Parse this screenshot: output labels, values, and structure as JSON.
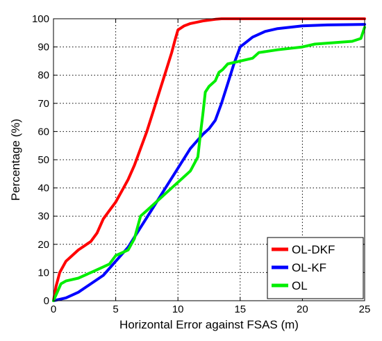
{
  "chart_data": {
    "type": "line",
    "xlabel": "Horizontal Error against FSAS (m)",
    "ylabel": "Percentage (%)",
    "xlim": [
      0,
      25
    ],
    "ylim": [
      0,
      100
    ],
    "xticks": [
      0,
      5,
      10,
      15,
      20,
      25
    ],
    "yticks": [
      0,
      10,
      20,
      30,
      40,
      50,
      60,
      70,
      80,
      90,
      100
    ],
    "grid": true,
    "legend_position": "bottom-right",
    "series": [
      {
        "name": "OL-DKF",
        "color": "#ff0000",
        "x": [
          0,
          0.2,
          0.5,
          1.0,
          1.5,
          2.0,
          2.5,
          3.0,
          3.5,
          4.0,
          4.5,
          5.0,
          5.5,
          6.0,
          6.5,
          7.0,
          7.5,
          8.0,
          8.5,
          9.0,
          9.5,
          9.8,
          10.0,
          10.5,
          11.0,
          12.0,
          13.0,
          13.5,
          15.0,
          20.0,
          25.0
        ],
        "y": [
          0,
          5,
          10,
          14,
          16,
          18,
          19.5,
          21,
          24,
          29,
          32,
          35,
          39,
          43,
          48,
          54,
          60,
          67,
          74,
          81,
          88,
          93,
          96,
          97.5,
          98.3,
          99.2,
          99.8,
          100,
          100,
          100,
          100
        ]
      },
      {
        "name": "OL-KF",
        "color": "#0000ff",
        "x": [
          0,
          0.5,
          1.0,
          2.0,
          3.0,
          4.0,
          5.0,
          6.0,
          7.0,
          8.0,
          9.0,
          10.0,
          11.0,
          11.5,
          12.0,
          12.5,
          13.0,
          13.5,
          14.0,
          14.5,
          15.0,
          16.0,
          17.0,
          18.0,
          19.0,
          20.0,
          22.0,
          25.0
        ],
        "y": [
          0,
          0.5,
          1,
          3,
          6,
          9,
          14,
          19,
          26,
          33,
          40,
          47,
          54,
          56.5,
          59,
          61,
          64,
          70,
          77,
          84,
          90,
          93.5,
          95.5,
          96.5,
          97,
          97.5,
          97.8,
          98
        ]
      },
      {
        "name": "OL",
        "color": "#00ee00",
        "x": [
          0,
          0.3,
          0.6,
          1.0,
          2.0,
          3.0,
          4.0,
          4.5,
          5.0,
          5.5,
          6.0,
          6.5,
          7.0,
          7.5,
          8.0,
          9.0,
          10.0,
          11.0,
          11.6,
          11.8,
          12.0,
          12.2,
          12.5,
          13.0,
          13.3,
          13.6,
          14.0,
          15.0,
          16.0,
          16.5,
          18.0,
          20.0,
          21.0,
          24.0,
          24.7,
          25.0
        ],
        "y": [
          0,
          3,
          6,
          7,
          8,
          10,
          12,
          13,
          16,
          17,
          18,
          22,
          30,
          32,
          34,
          38,
          42,
          46,
          51,
          59,
          66,
          74,
          76,
          78,
          81,
          82,
          84,
          85,
          86,
          88,
          89,
          90,
          91,
          92,
          93,
          97
        ]
      }
    ]
  }
}
